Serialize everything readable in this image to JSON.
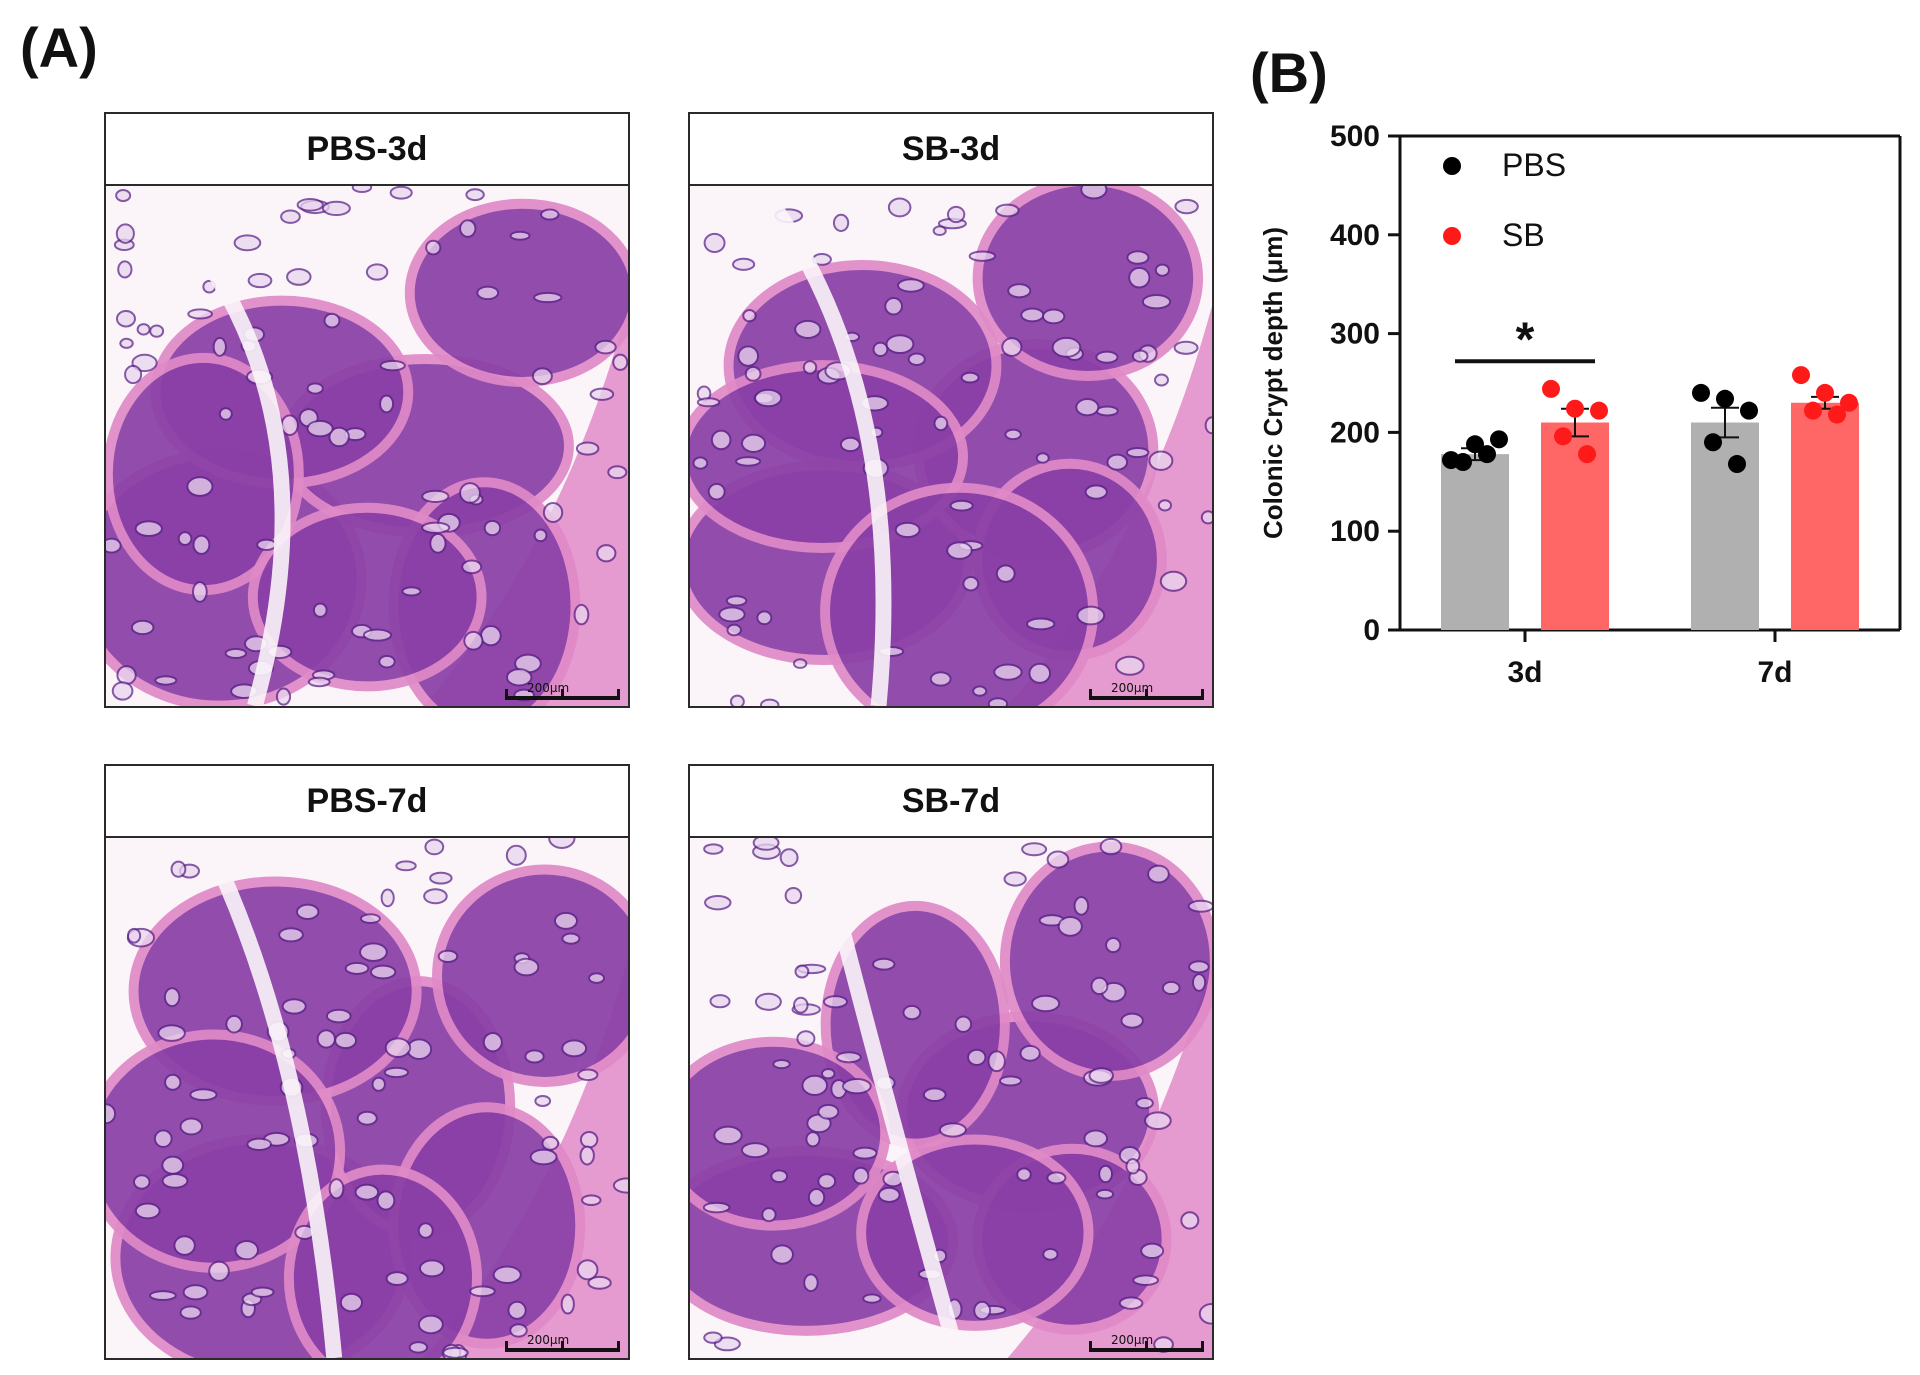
{
  "panel_a_label": "(A)",
  "panel_b_label": "(B)",
  "micrographs": [
    {
      "title": "PBS-3d",
      "scale_label": "200μm"
    },
    {
      "title": "SB-3d",
      "scale_label": "200μm"
    },
    {
      "title": "PBS-7d",
      "scale_label": "200μm"
    },
    {
      "title": "SB-7d",
      "scale_label": "200μm"
    }
  ],
  "colors": {
    "pbs_bar": "#b0b0b0",
    "sb_bar": "#ff6666",
    "pbs_dot": "#000000",
    "sb_dot": "#ff1a1a",
    "stain_pink": "#e08ac8",
    "stain_purple": "#8a3fa6",
    "stain_dark": "#5c2488",
    "lumen": "#fbf5fa"
  },
  "chart_data": {
    "type": "bar",
    "ylabel": "Colonic Crypt depth (μm)",
    "xlabel": "",
    "categories": [
      "3d",
      "7d"
    ],
    "ylim": [
      0,
      500
    ],
    "yticks": [
      0,
      100,
      200,
      300,
      400,
      500
    ],
    "legend_position": "top-left",
    "grid": false,
    "series": [
      {
        "name": "PBS",
        "values": [
          178,
          210
        ],
        "sem": [
          6,
          15
        ],
        "points": [
          [
            172,
            188,
            193,
            170,
            178
          ],
          [
            240,
            234,
            222,
            190,
            168
          ]
        ]
      },
      {
        "name": "SB",
        "values": [
          210,
          230
        ],
        "sem": [
          14,
          6
        ],
        "points": [
          [
            244,
            224,
            222,
            196,
            178
          ],
          [
            258,
            240,
            230,
            222,
            218
          ]
        ]
      }
    ],
    "annotations": [
      {
        "text": "*",
        "between": [
          "PBS",
          "SB"
        ],
        "category": "3d"
      }
    ]
  }
}
